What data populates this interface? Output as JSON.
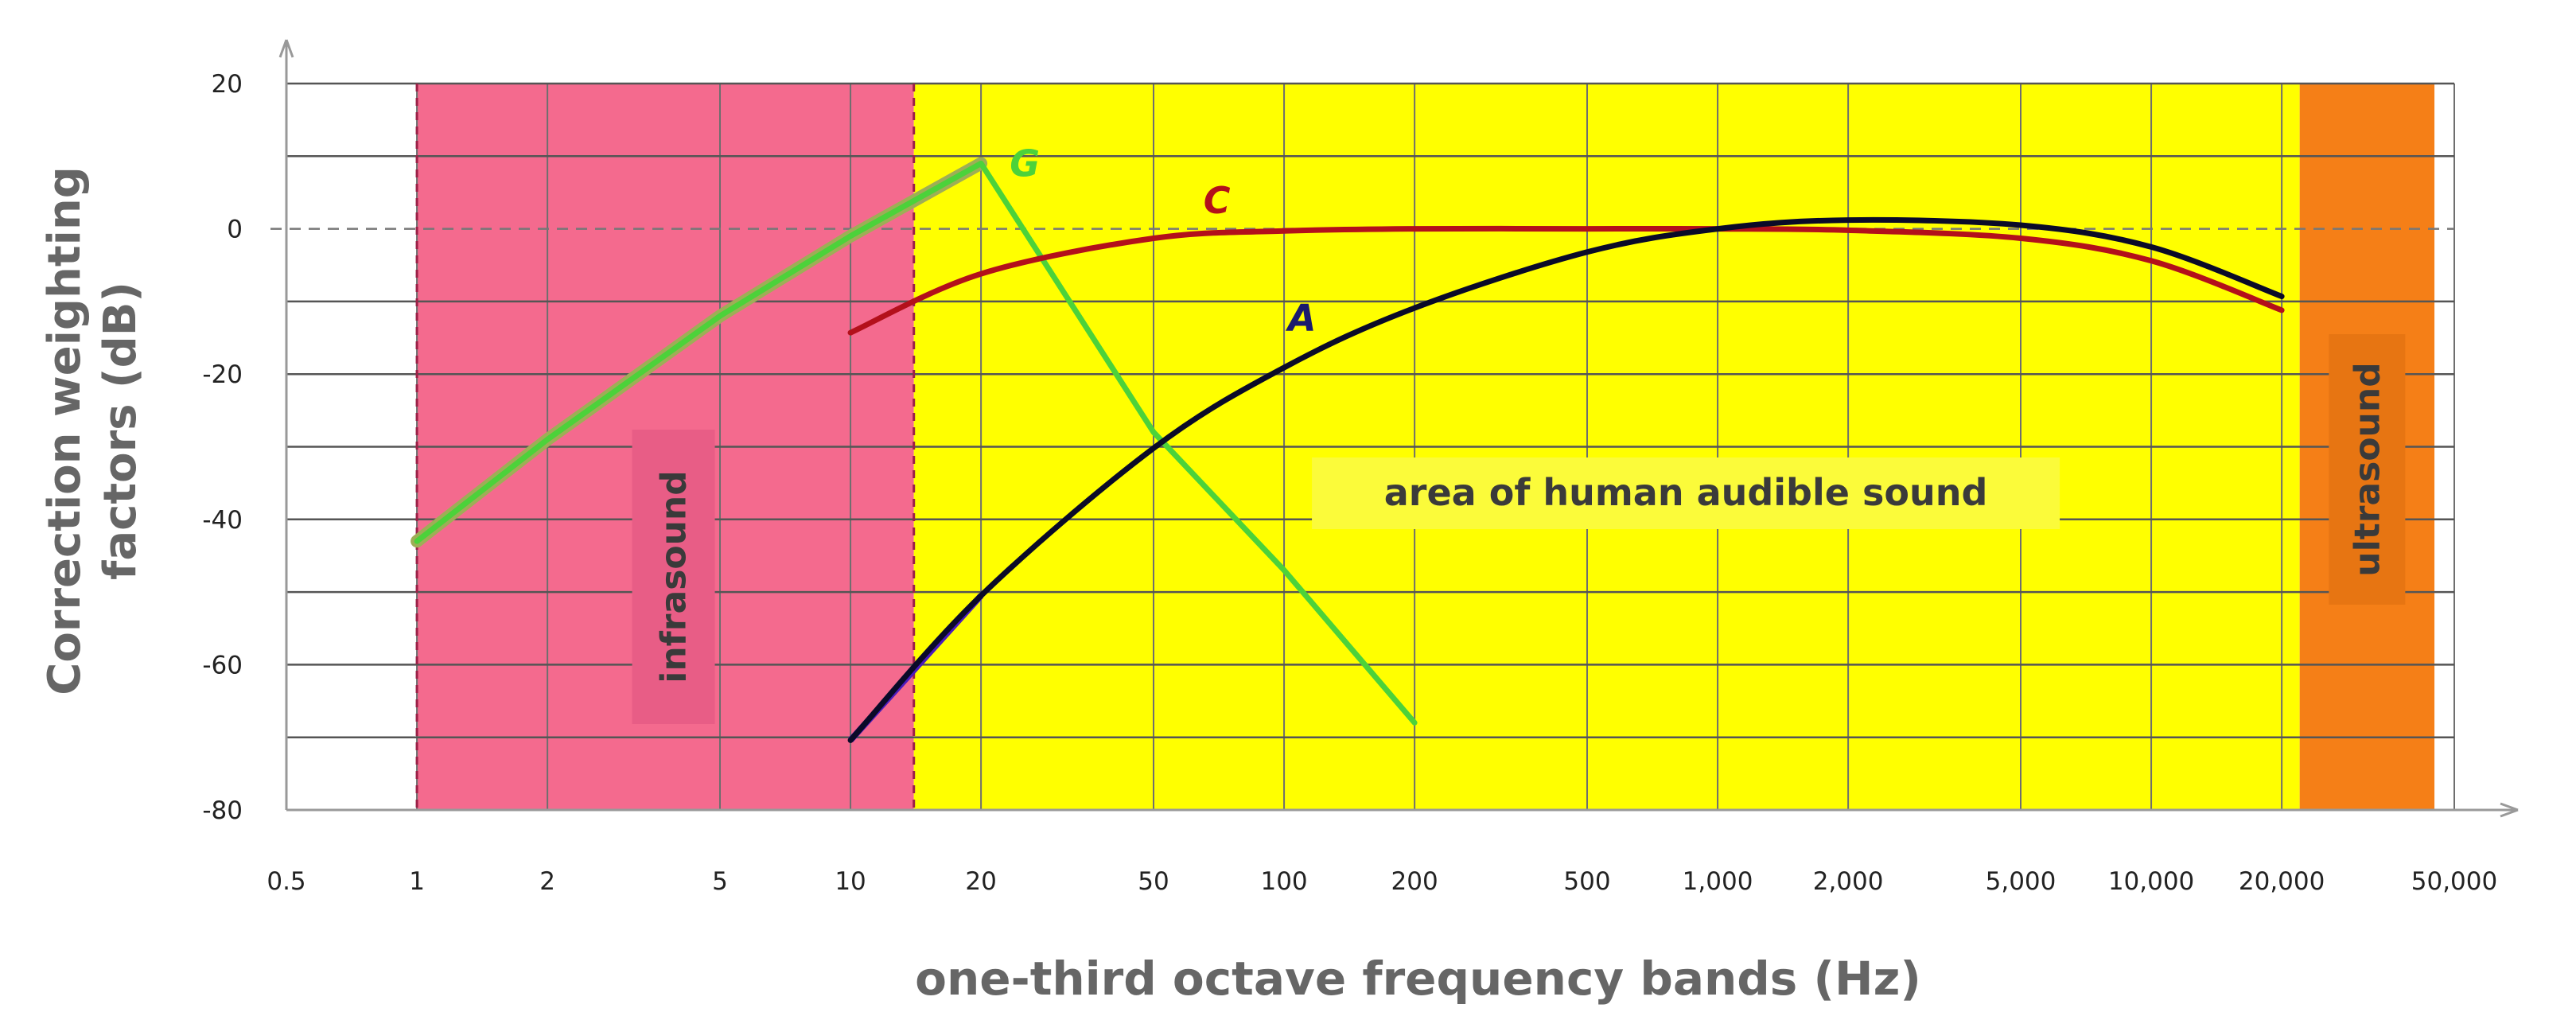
{
  "chart_data": {
    "type": "line",
    "title": "",
    "xlabel": "one-third  octave  frequency  bands   (Hz)",
    "ylabel_line1": "Correction   weighting",
    "ylabel_line2": "factors   (dB)",
    "x_scale": "log",
    "xlim": [
      0.5,
      50000
    ],
    "ylim": [
      -80,
      20
    ],
    "x_ticks": [
      {
        "value": 0.5,
        "label": "0.5"
      },
      {
        "value": 1,
        "label": "1"
      },
      {
        "value": 2,
        "label": "2"
      },
      {
        "value": 5,
        "label": "5"
      },
      {
        "value": 10,
        "label": "10"
      },
      {
        "value": 20,
        "label": "20"
      },
      {
        "value": 50,
        "label": "50"
      },
      {
        "value": 100,
        "label": "100"
      },
      {
        "value": 200,
        "label": "200"
      },
      {
        "value": 500,
        "label": "500"
      },
      {
        "value": 1000,
        "label": "1,000"
      },
      {
        "value": 2000,
        "label": "2,000"
      },
      {
        "value": 5000,
        "label": "5,000"
      },
      {
        "value": 10000,
        "label": "10,000"
      },
      {
        "value": 20000,
        "label": "20,000"
      },
      {
        "value": 50000,
        "label": "50,000"
      }
    ],
    "y_ticks": [
      {
        "value": 20,
        "label": "20"
      },
      {
        "value": 0,
        "label": "0"
      },
      {
        "value": -20,
        "label": "-20"
      },
      {
        "value": -40,
        "label": "-40"
      },
      {
        "value": -60,
        "label": "-60"
      },
      {
        "value": -80,
        "label": "-80"
      }
    ],
    "regions": [
      {
        "label": "infrasound",
        "x_from": 1,
        "x_to": 14,
        "color": "#f46a8e"
      },
      {
        "label": "area of human audible sound",
        "x_from": 14,
        "x_to": 22000,
        "color": "#ffff00"
      },
      {
        "label": "ultrasound",
        "x_from": 22000,
        "x_to": 45000,
        "color": "#f57f17"
      }
    ],
    "series": [
      {
        "name": "G",
        "color": "#4cd23a",
        "points": [
          [
            1,
            -43
          ],
          [
            2,
            -29
          ],
          [
            5,
            -12
          ],
          [
            10,
            -1
          ],
          [
            20,
            9
          ],
          [
            50,
            -28
          ],
          [
            100,
            -47
          ],
          [
            200,
            -68
          ]
        ]
      },
      {
        "name": "C",
        "color": "#b3101b",
        "points": [
          [
            10,
            -14.3
          ],
          [
            20,
            -6.2
          ],
          [
            50,
            -1.3
          ],
          [
            100,
            -0.3
          ],
          [
            200,
            0
          ],
          [
            500,
            0
          ],
          [
            1000,
            0
          ],
          [
            2000,
            -0.2
          ],
          [
            5000,
            -1.3
          ],
          [
            10000,
            -4.4
          ],
          [
            20000,
            -11.2
          ]
        ]
      },
      {
        "name": "A",
        "color": "#0a0a28",
        "points": [
          [
            10,
            -70.4
          ],
          [
            20,
            -50.5
          ],
          [
            50,
            -30.2
          ],
          [
            100,
            -19.1
          ],
          [
            200,
            -10.9
          ],
          [
            500,
            -3.2
          ],
          [
            1000,
            0
          ],
          [
            2000,
            1.2
          ],
          [
            5000,
            0.5
          ],
          [
            10000,
            -2.5
          ],
          [
            20000,
            -9.3
          ]
        ]
      }
    ],
    "grid": true,
    "dashed_zero_line": true
  }
}
